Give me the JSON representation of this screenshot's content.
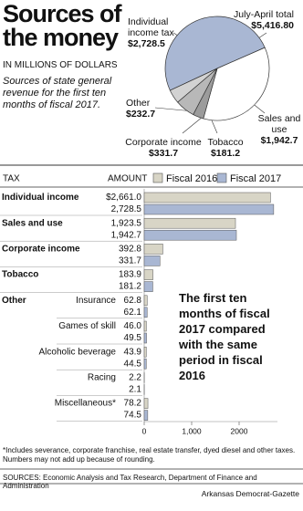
{
  "header": {
    "title": "Sources of the money",
    "subtitle": "IN MILLIONS OF DOLLARS",
    "description": "Sources of state general revenue for the first ten months of fiscal 2017."
  },
  "chart_data": [
    {
      "type": "pie",
      "categories": [
        "Individual income tax",
        "Sales and use",
        "Tobacco",
        "Corporate income",
        "Other"
      ],
      "values": [
        2728.5,
        1942.7,
        181.2,
        331.7,
        232.7
      ],
      "value_labels": [
        "$2,728.5",
        "$1,942.7",
        "$181.2",
        "$331.7",
        "$232.7"
      ],
      "colors": [
        "#a9b7d3",
        "#ffffff",
        "#9c9c9c",
        "#b8b8b8",
        "#d2d2d2"
      ],
      "total_label": "July-April total",
      "total": 5416.8,
      "total_value_label": "$5,416.80"
    },
    {
      "type": "bar",
      "orientation": "horizontal",
      "category_header": "TAX",
      "value_header": "AMOUNT",
      "categories": [
        "Individual income",
        "Sales and use",
        "Corporate income",
        "Tobacco",
        "Insurance",
        "Games of skill",
        "Alcoholic beverage",
        "Racing",
        "Miscellaneous*"
      ],
      "group_label": "Other",
      "series": [
        {
          "name": "Fiscal 2016",
          "color": "#d8d5c6",
          "values": [
            2661.0,
            1923.5,
            392.8,
            183.9,
            62.8,
            46.0,
            43.9,
            2.2,
            78.2
          ],
          "value_labels": [
            "$2,661.0",
            "1,923.5",
            "392.8",
            "183.9",
            "62.8",
            "46.0",
            "43.9",
            "2.2",
            "78.2"
          ]
        },
        {
          "name": "Fiscal 2017",
          "color": "#a9b7d3",
          "values": [
            2728.5,
            1942.7,
            331.7,
            181.2,
            62.1,
            49.5,
            44.5,
            2.1,
            74.5
          ],
          "value_labels": [
            "2,728.5",
            "1,942.7",
            "331.7",
            "181.2",
            "62.1",
            "49.5",
            "44.5",
            "2.1",
            "74.5"
          ]
        }
      ],
      "xlim": [
        0,
        2800
      ],
      "xticks": [
        0,
        {
          "value": 1000,
          "label": "1,000"
        },
        2000
      ],
      "annotation": "The first ten months of fiscal 2017 compared with the same period in fiscal 2016"
    }
  ],
  "footnote": "*Includes severance, corporate franchise, real estate transfer, dyed diesel and other taxes. Numbers may not add up because of rounding.",
  "sources": "SOURCES: Economic Analysis and Tax Research, Department of Finance and Administration",
  "credit": "Arkansas Democrat-Gazette"
}
